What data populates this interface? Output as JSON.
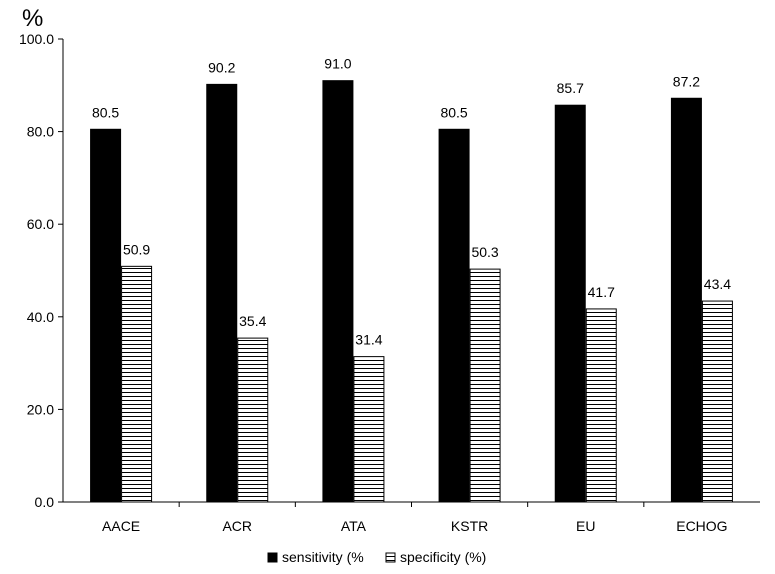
{
  "chart_data": {
    "type": "bar",
    "title": "",
    "xlabel": "",
    "ylabel": "%",
    "ylim": [
      0,
      100
    ],
    "yticks": [
      "0.0",
      "20.0",
      "40.0",
      "60.0",
      "80.0",
      "100.0"
    ],
    "categories": [
      "AACE",
      "ACR",
      "ATA",
      "KSTR",
      "EU",
      "ECHOG"
    ],
    "series": [
      {
        "name": "sensitivity (%",
        "values": [
          80.5,
          90.2,
          91.0,
          80.5,
          85.7,
          87.2
        ],
        "labels": [
          "80.5",
          "90.2",
          "91.0",
          "80.5",
          "85.7",
          "87.2"
        ],
        "fill": "solid-black"
      },
      {
        "name": "specificity (%)",
        "values": [
          50.9,
          35.4,
          31.4,
          50.3,
          41.7,
          43.4
        ],
        "labels": [
          "50.9",
          "35.4",
          "31.4",
          "50.3",
          "41.7",
          "43.4"
        ],
        "fill": "horizontal-stripes"
      }
    ],
    "grid": false,
    "legend_position": "bottom",
    "colors": {
      "bar_primary": "#000000",
      "bar_pattern_line": "#000000",
      "bar_pattern_bg": "#ffffff",
      "axis": "#000000"
    }
  }
}
